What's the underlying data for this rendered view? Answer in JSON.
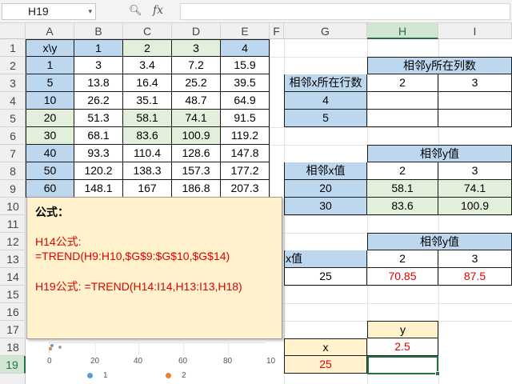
{
  "formula_bar": {
    "name_box": "H19",
    "search_icon": "zoom-icon",
    "fx_label": "fx",
    "formula": ""
  },
  "columns": [
    "A",
    "B",
    "C",
    "D",
    "E",
    "F",
    "G",
    "H",
    "I"
  ],
  "rows": [
    "1",
    "2",
    "3",
    "4",
    "5",
    "6",
    "7",
    "8",
    "9",
    "10",
    "11",
    "12",
    "13",
    "14",
    "15",
    "16",
    "17",
    "18",
    "19"
  ],
  "table_main": {
    "header": [
      "x\\y",
      "1",
      "2",
      "3",
      "4"
    ],
    "rows": [
      [
        "1",
        "3",
        "3.4",
        "7.2",
        "15.9"
      ],
      [
        "5",
        "13.8",
        "16.4",
        "25.2",
        "39.5"
      ],
      [
        "10",
        "26.2",
        "35.1",
        "48.7",
        "64.9"
      ],
      [
        "20",
        "51.3",
        "58.1",
        "74.1",
        "91.5"
      ],
      [
        "30",
        "68.1",
        "83.6",
        "100.9",
        "119.2"
      ],
      [
        "40",
        "93.3",
        "110.4",
        "128.6",
        "147.8"
      ],
      [
        "50",
        "120.2",
        "138.3",
        "157.3",
        "177.2"
      ],
      [
        "60",
        "148.1",
        "167",
        "186.8",
        "207.3"
      ]
    ]
  },
  "table_pos": {
    "title": "相邻y所在列数",
    "row_label": "相邻x所在行数",
    "cols": [
      "2",
      "3"
    ],
    "rows": [
      "4",
      "5"
    ]
  },
  "table_vals": {
    "title": "相邻y值",
    "row_label": "相邻x值",
    "cols": [
      "2",
      "3"
    ],
    "rows": [
      {
        "x": "20",
        "v": [
          "58.1",
          "74.1"
        ]
      },
      {
        "x": "30",
        "v": [
          "83.6",
          "100.9"
        ]
      }
    ]
  },
  "table_x": {
    "title": "相邻y值",
    "row_label": "x值",
    "cols": [
      "2",
      "3"
    ],
    "x": "25",
    "v": [
      "70.85",
      "87.5"
    ]
  },
  "table_final": {
    "y_label": "y",
    "x_label": "x",
    "y_value": "2.5",
    "x_value": "25",
    "result": ""
  },
  "note": {
    "title": "公式：",
    "h14_label": "H14公式:",
    "h14_formula": "=TREND(H9:H10,$G$9:$G$10,$G$14)",
    "h19_line": "H19公式:   =TREND(H14:I14,H13:I13,H18)"
  },
  "chart_peek": {
    "x_ticks": [
      "0",
      "20",
      "40",
      "60",
      "80",
      "10"
    ],
    "legend": [
      "1",
      "2"
    ],
    "colors": {
      "series1": "#5b9bd5",
      "series2": "#ed7d31"
    }
  },
  "colors": {
    "blue_fill": "#bdd7ee",
    "green_fill": "#e2efda",
    "orange_fill": "#fff2cc",
    "red_text": "#e00000",
    "selection": "#217346"
  }
}
